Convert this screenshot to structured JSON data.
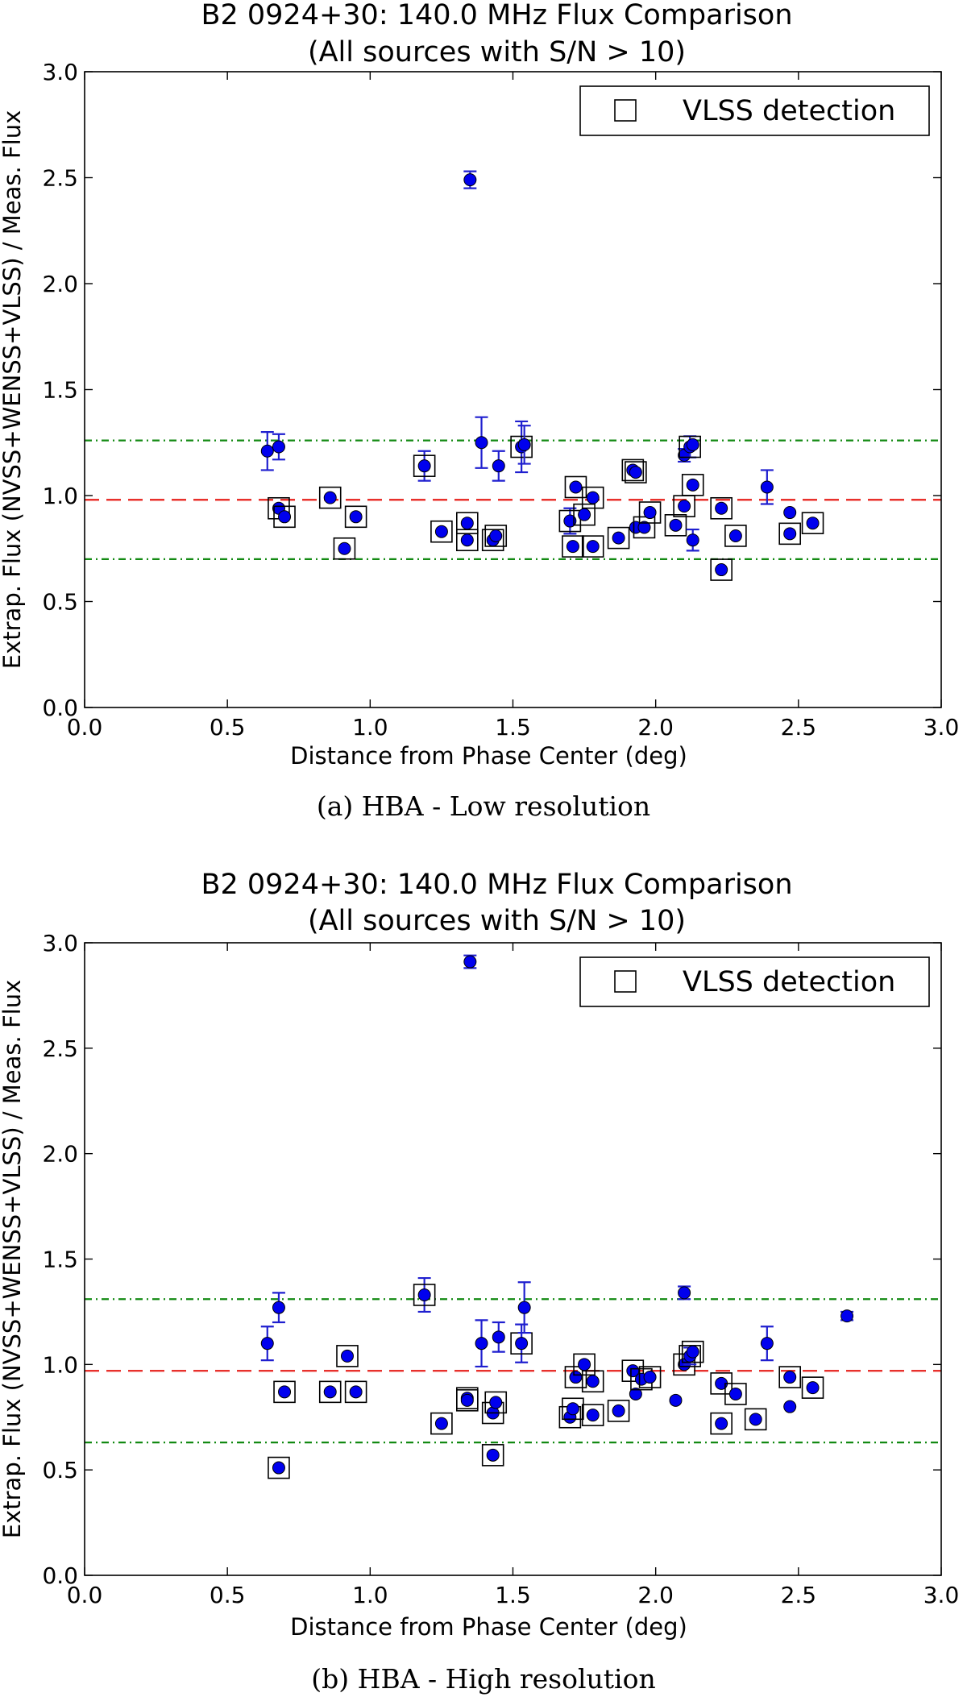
{
  "colors": {
    "marker": "#0000ee",
    "errorbar": "#1f1fcf",
    "mean_line": "#e8312c",
    "bound_line": "#138a13",
    "axes": "#000000"
  },
  "chart_data": [
    {
      "type": "scatter",
      "title": "B2 0924+30: 140.0 MHz Flux Comparison",
      "subtitle": "(All sources with S/N > 10)",
      "xlabel": "Distance from Phase Center (deg)",
      "ylabel": "Extrap. Flux (NVSS+WENSS+VLSS) / Meas. Flux",
      "caption": "(a)  HBA - Low resolution",
      "xlim": [
        0,
        3
      ],
      "ylim": [
        0,
        3
      ],
      "xticks": [
        "0.0",
        "0.5",
        "1.0",
        "1.5",
        "2.0",
        "2.5",
        "3.0"
      ],
      "yticks": [
        "0.0",
        "0.5",
        "1.0",
        "1.5",
        "2.0",
        "2.5",
        "3.0"
      ],
      "legend": {
        "label": "VLSS detection",
        "position": "top-right"
      },
      "mean_line": 0.98,
      "bound_lines": [
        1.26,
        0.7
      ],
      "points": [
        {
          "x": 0.64,
          "y": 1.21,
          "err": 0.09,
          "vlss": false
        },
        {
          "x": 0.68,
          "y": 1.23,
          "err": 0.06,
          "vlss": false
        },
        {
          "x": 0.68,
          "y": 0.94,
          "err": 0,
          "vlss": true
        },
        {
          "x": 0.7,
          "y": 0.9,
          "err": 0,
          "vlss": true
        },
        {
          "x": 0.86,
          "y": 0.99,
          "err": 0,
          "vlss": true
        },
        {
          "x": 0.91,
          "y": 0.75,
          "err": 0,
          "vlss": true
        },
        {
          "x": 0.95,
          "y": 0.9,
          "err": 0,
          "vlss": true
        },
        {
          "x": 1.19,
          "y": 1.14,
          "err": 0.07,
          "vlss": true
        },
        {
          "x": 1.25,
          "y": 0.83,
          "err": 0,
          "vlss": true
        },
        {
          "x": 1.34,
          "y": 0.87,
          "err": 0,
          "vlss": true
        },
        {
          "x": 1.34,
          "y": 0.79,
          "err": 0,
          "vlss": true
        },
        {
          "x": 1.35,
          "y": 2.49,
          "err": 0.04,
          "vlss": false
        },
        {
          "x": 1.39,
          "y": 1.25,
          "err": 0.12,
          "vlss": false
        },
        {
          "x": 1.43,
          "y": 0.79,
          "err": 0,
          "vlss": true
        },
        {
          "x": 1.44,
          "y": 0.81,
          "err": 0,
          "vlss": true
        },
        {
          "x": 1.45,
          "y": 1.14,
          "err": 0.07,
          "vlss": false
        },
        {
          "x": 1.53,
          "y": 1.23,
          "err": 0.12,
          "vlss": true
        },
        {
          "x": 1.54,
          "y": 1.24,
          "err": 0.09,
          "vlss": false
        },
        {
          "x": 1.7,
          "y": 0.88,
          "err": 0.06,
          "vlss": true
        },
        {
          "x": 1.71,
          "y": 0.76,
          "err": 0,
          "vlss": true
        },
        {
          "x": 1.72,
          "y": 1.04,
          "err": 0,
          "vlss": true
        },
        {
          "x": 1.75,
          "y": 0.91,
          "err": 0,
          "vlss": true
        },
        {
          "x": 1.78,
          "y": 0.99,
          "err": 0,
          "vlss": true
        },
        {
          "x": 1.78,
          "y": 0.76,
          "err": 0,
          "vlss": true
        },
        {
          "x": 1.87,
          "y": 0.8,
          "err": 0,
          "vlss": true
        },
        {
          "x": 1.92,
          "y": 1.12,
          "err": 0,
          "vlss": true
        },
        {
          "x": 1.93,
          "y": 1.11,
          "err": 0,
          "vlss": true
        },
        {
          "x": 1.93,
          "y": 0.85,
          "err": 0,
          "vlss": false
        },
        {
          "x": 1.96,
          "y": 0.85,
          "err": 0,
          "vlss": true
        },
        {
          "x": 1.98,
          "y": 0.92,
          "err": 0,
          "vlss": true
        },
        {
          "x": 2.07,
          "y": 0.86,
          "err": 0,
          "vlss": true
        },
        {
          "x": 2.1,
          "y": 0.95,
          "err": 0,
          "vlss": true
        },
        {
          "x": 2.1,
          "y": 1.19,
          "err": 0.03,
          "vlss": false
        },
        {
          "x": 2.12,
          "y": 1.23,
          "err": 0.05,
          "vlss": true
        },
        {
          "x": 2.13,
          "y": 1.24,
          "err": 0,
          "vlss": false
        },
        {
          "x": 2.13,
          "y": 1.05,
          "err": 0,
          "vlss": true
        },
        {
          "x": 2.13,
          "y": 0.79,
          "err": 0.05,
          "vlss": false
        },
        {
          "x": 2.23,
          "y": 0.94,
          "err": 0,
          "vlss": true
        },
        {
          "x": 2.23,
          "y": 0.65,
          "err": 0,
          "vlss": true
        },
        {
          "x": 2.28,
          "y": 0.81,
          "err": 0,
          "vlss": true
        },
        {
          "x": 2.39,
          "y": 1.04,
          "err": 0.08,
          "vlss": false
        },
        {
          "x": 2.47,
          "y": 0.92,
          "err": 0,
          "vlss": false
        },
        {
          "x": 2.47,
          "y": 0.82,
          "err": 0,
          "vlss": true
        },
        {
          "x": 2.55,
          "y": 0.87,
          "err": 0,
          "vlss": true
        }
      ]
    },
    {
      "type": "scatter",
      "title": "B2 0924+30: 140.0 MHz Flux Comparison",
      "subtitle": "(All sources with S/N > 10)",
      "xlabel": "Distance from Phase Center (deg)",
      "ylabel": "Extrap. Flux (NVSS+WENSS+VLSS) / Meas. Flux",
      "caption": "(b)  HBA - High resolution",
      "xlim": [
        0,
        3
      ],
      "ylim": [
        0,
        3
      ],
      "xticks": [
        "0.0",
        "0.5",
        "1.0",
        "1.5",
        "2.0",
        "2.5",
        "3.0"
      ],
      "yticks": [
        "0.0",
        "0.5",
        "1.0",
        "1.5",
        "2.0",
        "2.5",
        "3.0"
      ],
      "legend": {
        "label": "VLSS detection",
        "position": "top-right"
      },
      "mean_line": 0.97,
      "bound_lines": [
        1.31,
        0.63
      ],
      "points": [
        {
          "x": 0.64,
          "y": 1.1,
          "err": 0.08,
          "vlss": false
        },
        {
          "x": 0.68,
          "y": 1.27,
          "err": 0.07,
          "vlss": false
        },
        {
          "x": 0.68,
          "y": 0.51,
          "err": 0,
          "vlss": true
        },
        {
          "x": 0.7,
          "y": 0.87,
          "err": 0,
          "vlss": true
        },
        {
          "x": 0.86,
          "y": 0.87,
          "err": 0,
          "vlss": true
        },
        {
          "x": 0.92,
          "y": 1.04,
          "err": 0,
          "vlss": true
        },
        {
          "x": 0.95,
          "y": 0.87,
          "err": 0,
          "vlss": true
        },
        {
          "x": 1.19,
          "y": 1.33,
          "err": 0.08,
          "vlss": true
        },
        {
          "x": 1.25,
          "y": 0.72,
          "err": 0,
          "vlss": true
        },
        {
          "x": 1.34,
          "y": 0.84,
          "err": 0,
          "vlss": true
        },
        {
          "x": 1.34,
          "y": 0.83,
          "err": 0,
          "vlss": true
        },
        {
          "x": 1.35,
          "y": 2.91,
          "err": 0.03,
          "vlss": false
        },
        {
          "x": 1.39,
          "y": 1.1,
          "err": 0.11,
          "vlss": false
        },
        {
          "x": 1.43,
          "y": 0.77,
          "err": 0,
          "vlss": true
        },
        {
          "x": 1.44,
          "y": 0.82,
          "err": 0,
          "vlss": true
        },
        {
          "x": 1.43,
          "y": 0.57,
          "err": 0,
          "vlss": true
        },
        {
          "x": 1.45,
          "y": 1.13,
          "err": 0.07,
          "vlss": false
        },
        {
          "x": 1.53,
          "y": 1.1,
          "err": 0.09,
          "vlss": true
        },
        {
          "x": 1.54,
          "y": 1.27,
          "err": 0.12,
          "vlss": false
        },
        {
          "x": 1.7,
          "y": 0.75,
          "err": 0,
          "vlss": true
        },
        {
          "x": 1.71,
          "y": 0.79,
          "err": 0,
          "vlss": true
        },
        {
          "x": 1.72,
          "y": 0.94,
          "err": 0,
          "vlss": true
        },
        {
          "x": 1.75,
          "y": 1.0,
          "err": 0,
          "vlss": true
        },
        {
          "x": 1.78,
          "y": 0.92,
          "err": 0,
          "vlss": true
        },
        {
          "x": 1.78,
          "y": 0.76,
          "err": 0,
          "vlss": true
        },
        {
          "x": 1.87,
          "y": 0.78,
          "err": 0,
          "vlss": true
        },
        {
          "x": 1.92,
          "y": 0.97,
          "err": 0,
          "vlss": true
        },
        {
          "x": 1.93,
          "y": 0.86,
          "err": 0,
          "vlss": false
        },
        {
          "x": 1.95,
          "y": 0.93,
          "err": 0,
          "vlss": true
        },
        {
          "x": 1.98,
          "y": 0.94,
          "err": 0,
          "vlss": true
        },
        {
          "x": 2.07,
          "y": 0.83,
          "err": 0,
          "vlss": false
        },
        {
          "x": 2.1,
          "y": 1.34,
          "err": 0.03,
          "vlss": false
        },
        {
          "x": 2.1,
          "y": 1.0,
          "err": 0,
          "vlss": true
        },
        {
          "x": 2.12,
          "y": 1.04,
          "err": 0.04,
          "vlss": true
        },
        {
          "x": 2.13,
          "y": 1.06,
          "err": 0,
          "vlss": true
        },
        {
          "x": 2.23,
          "y": 0.91,
          "err": 0,
          "vlss": true
        },
        {
          "x": 2.23,
          "y": 0.72,
          "err": 0,
          "vlss": true
        },
        {
          "x": 2.28,
          "y": 0.86,
          "err": 0,
          "vlss": true
        },
        {
          "x": 2.35,
          "y": 0.74,
          "err": 0,
          "vlss": true
        },
        {
          "x": 2.39,
          "y": 1.1,
          "err": 0.08,
          "vlss": false
        },
        {
          "x": 2.47,
          "y": 0.94,
          "err": 0,
          "vlss": true
        },
        {
          "x": 2.47,
          "y": 0.8,
          "err": 0,
          "vlss": false
        },
        {
          "x": 2.55,
          "y": 0.89,
          "err": 0,
          "vlss": true
        },
        {
          "x": 2.67,
          "y": 1.23,
          "err": 0.02,
          "vlss": false
        }
      ]
    }
  ]
}
